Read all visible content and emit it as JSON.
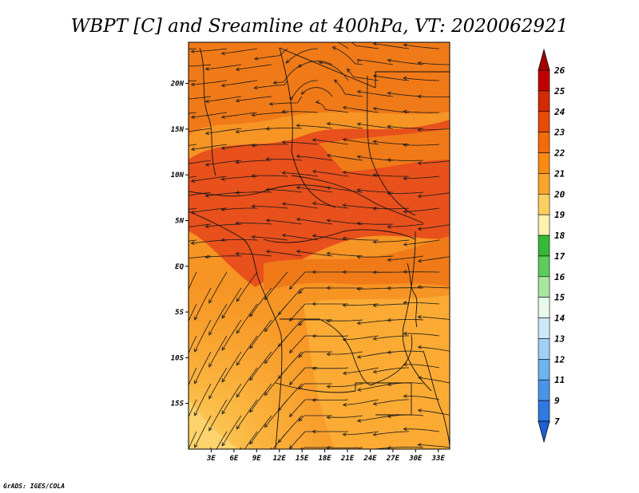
{
  "title": "WBPT [C] and Sreamline at 400hPa, VT: 2020062921",
  "credit": "GrADS: IGES/COLA",
  "map": {
    "x_ticks": [
      "3E",
      "6E",
      "9E",
      "12E",
      "15E",
      "18E",
      "21E",
      "24E",
      "27E",
      "30E",
      "33E"
    ],
    "y_ticks": [
      "20N",
      "15N",
      "10N",
      "5N",
      "EQ",
      "5S",
      "10S",
      "15S"
    ],
    "lon_range": [
      0,
      34.5
    ],
    "lat_range": [
      -20,
      24.5
    ]
  },
  "colorbar": {
    "labels": [
      "26",
      "25",
      "24",
      "23",
      "22",
      "21",
      "20",
      "19",
      "18",
      "17",
      "16",
      "15",
      "14",
      "13",
      "12",
      "11",
      "9",
      "7"
    ],
    "colors_top_to_bottom": [
      "#a50000",
      "#c00000",
      "#d42a00",
      "#e84a00",
      "#f26a0a",
      "#f98b10",
      "#faa52a",
      "#fcd060",
      "#fbf2b0",
      "#37b837",
      "#5ccc5c",
      "#a8e6a0",
      "#e9f9ea",
      "#cde9f9",
      "#9fd0f5",
      "#6eb2ee",
      "#4a94e8",
      "#2f79e0",
      "#1f5fd6"
    ]
  },
  "field_colors": {
    "hot": "#e8501c",
    "warm": "#f07a18",
    "mid": "#f69424",
    "cool": "#fbab34",
    "pale": "#fcd36c"
  }
}
